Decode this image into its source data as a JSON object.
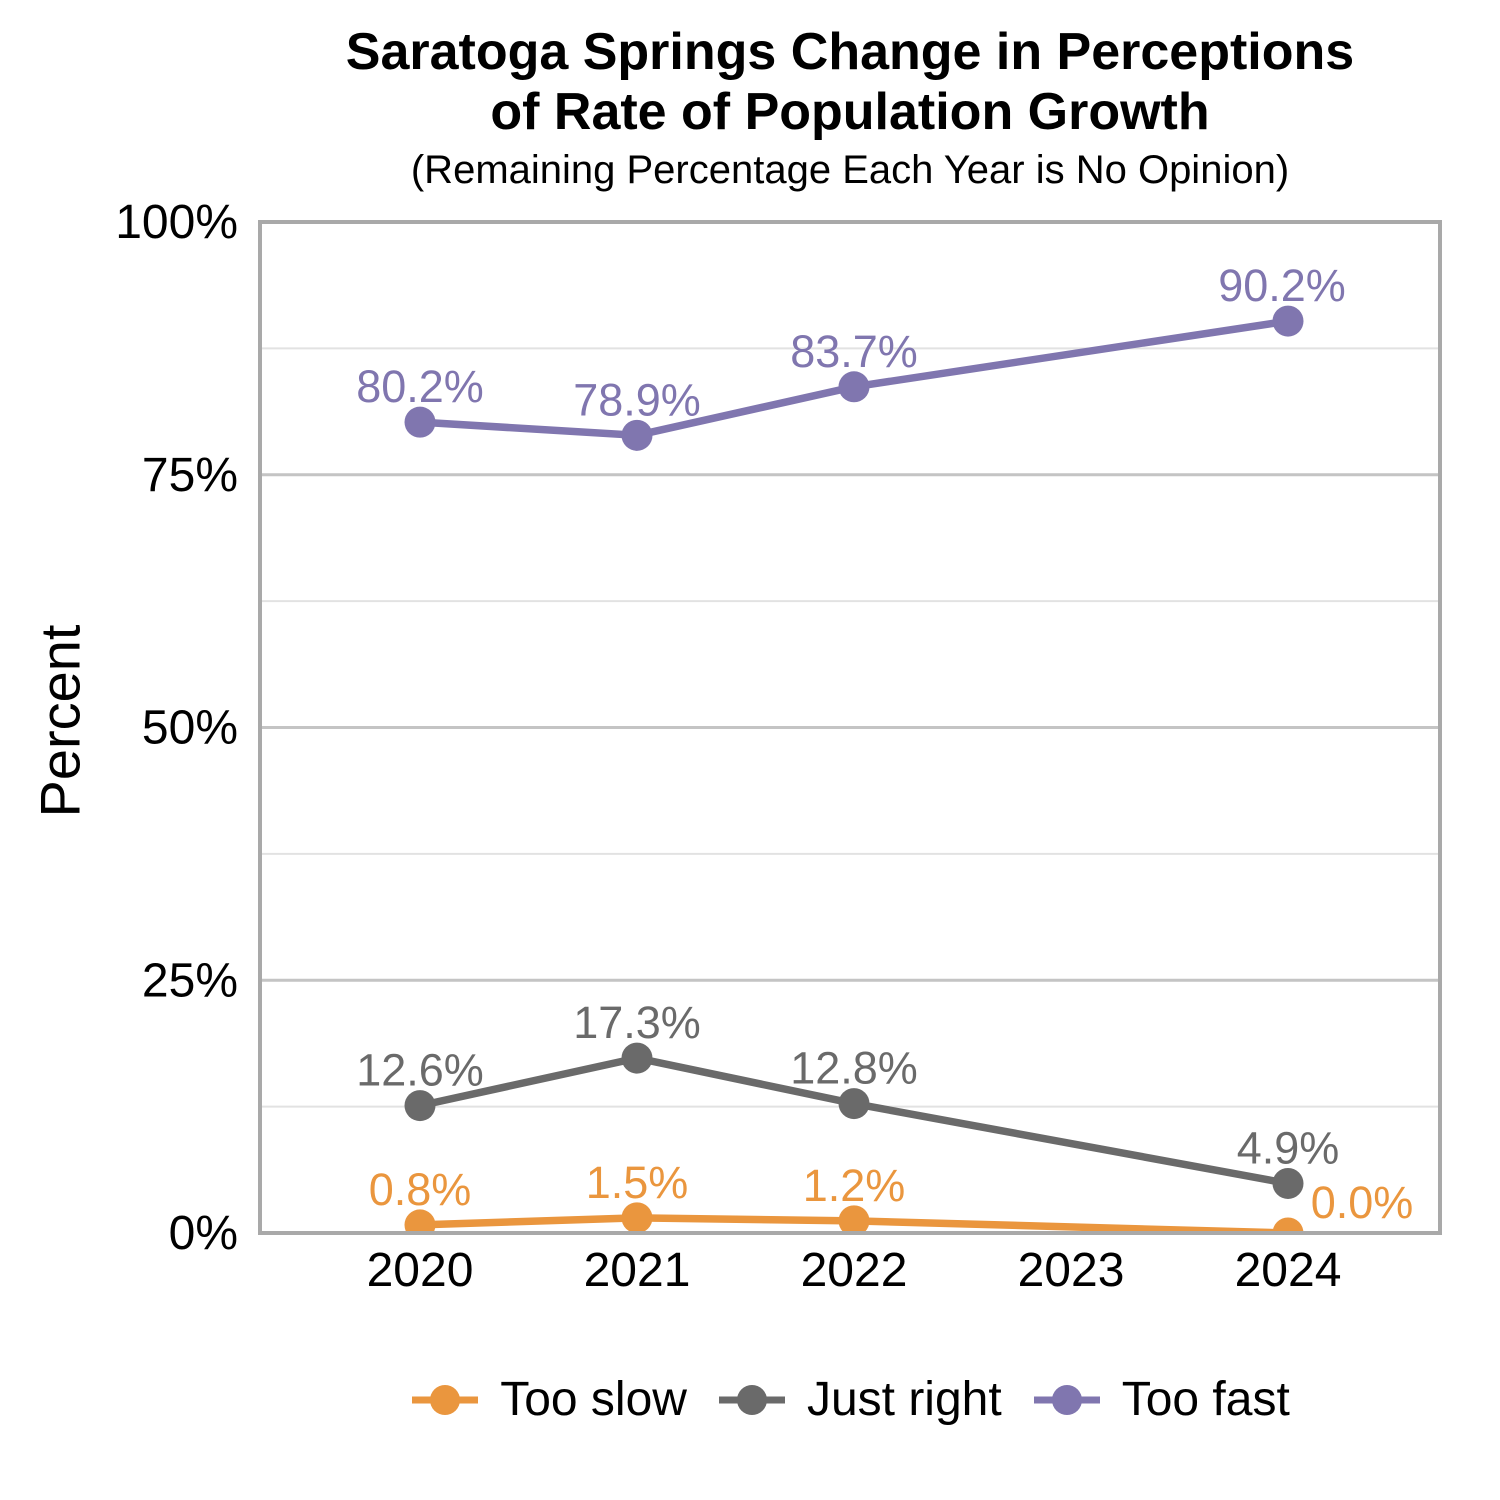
{
  "title": {
    "line1": "Saratoga Springs Change in Perceptions",
    "line2": "of Rate of Population Growth",
    "subtitle": "(Remaining Percentage Each Year is No Opinion)"
  },
  "chart_data": {
    "type": "line",
    "title": "Saratoga Springs Change in Perceptions of Rate of Population Growth",
    "subtitle": "(Remaining Percentage Each Year is No Opinion)",
    "ylabel": "Percent",
    "xlabel": "",
    "ylim": [
      0,
      100
    ],
    "x_categories": [
      "2020",
      "2021",
      "2022",
      "2023",
      "2024"
    ],
    "series": [
      {
        "name": "Too slow",
        "color": "#EA963E",
        "values": [
          0.8,
          1.5,
          1.2,
          null,
          0.0
        ],
        "point_labels": [
          "0.8%",
          "1.5%",
          "1.2%",
          null,
          "0.0%"
        ],
        "label_offsets": [
          [
            0,
            0
          ],
          [
            0,
            0
          ],
          [
            0,
            0
          ],
          null,
          [
            74,
            5
          ]
        ]
      },
      {
        "name": "Just right",
        "color": "#6A6A6A",
        "values": [
          12.6,
          17.3,
          12.8,
          null,
          4.9
        ],
        "point_labels": [
          "12.6%",
          "17.3%",
          "12.8%",
          null,
          "4.9%"
        ],
        "label_offsets": [
          [
            0,
            0
          ],
          [
            0,
            0
          ],
          [
            0,
            0
          ],
          null,
          [
            0,
            0
          ]
        ]
      },
      {
        "name": "Too fast",
        "color": "#8076AF",
        "values": [
          80.2,
          78.9,
          83.7,
          null,
          90.2
        ],
        "point_labels": [
          "80.2%",
          "78.9%",
          "83.7%",
          null,
          "90.2%"
        ],
        "label_offsets": [
          [
            0,
            0
          ],
          [
            0,
            0
          ],
          [
            0,
            0
          ],
          null,
          [
            -6,
            0
          ]
        ]
      }
    ],
    "y_ticks": [
      {
        "value": 0,
        "label": "0%"
      },
      {
        "value": 25,
        "label": "25%"
      },
      {
        "value": 50,
        "label": "50%"
      },
      {
        "value": 75,
        "label": "75%"
      },
      {
        "value": 100,
        "label": "100%"
      }
    ],
    "grid": {
      "major": [
        0,
        25,
        50,
        75,
        100
      ],
      "minor": [
        12.5,
        37.5,
        62.5,
        87.5
      ],
      "major_color": "#C4C4C4",
      "minor_color": "#E2E2E2"
    },
    "panel_border_color": "#A9A9A9",
    "axis_text_color": "#000000",
    "legend_position": "bottom"
  }
}
